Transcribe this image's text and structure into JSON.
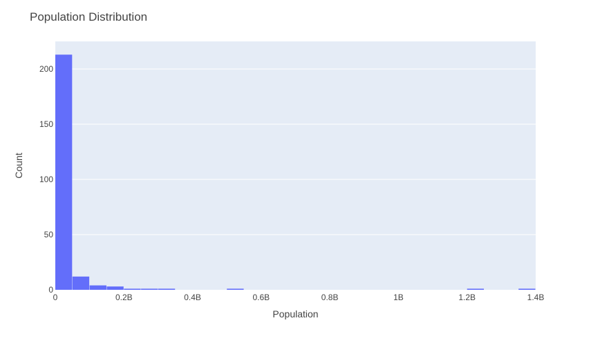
{
  "chart_data": {
    "type": "bar",
    "title": "Population Distribution",
    "xlabel": "Population",
    "ylabel": "Count",
    "xlim": [
      0,
      1400000000
    ],
    "ylim": [
      0,
      225
    ],
    "bin_width": 50000000,
    "x_ticks": [
      {
        "value": 0,
        "label": "0"
      },
      {
        "value": 200000000,
        "label": "0.2B"
      },
      {
        "value": 400000000,
        "label": "0.4B"
      },
      {
        "value": 600000000,
        "label": "0.6B"
      },
      {
        "value": 800000000,
        "label": "0.8B"
      },
      {
        "value": 1000000000,
        "label": "1B"
      },
      {
        "value": 1200000000,
        "label": "1.2B"
      },
      {
        "value": 1400000000,
        "label": "1.4B"
      }
    ],
    "y_ticks": [
      {
        "value": 0,
        "label": "0"
      },
      {
        "value": 50,
        "label": "50"
      },
      {
        "value": 100,
        "label": "100"
      },
      {
        "value": 150,
        "label": "150"
      },
      {
        "value": 200,
        "label": "200"
      }
    ],
    "bins": [
      {
        "x0": 0,
        "x1": 50000000,
        "count": 213
      },
      {
        "x0": 50000000,
        "x1": 100000000,
        "count": 12
      },
      {
        "x0": 100000000,
        "x1": 150000000,
        "count": 4
      },
      {
        "x0": 150000000,
        "x1": 200000000,
        "count": 3
      },
      {
        "x0": 200000000,
        "x1": 250000000,
        "count": 1
      },
      {
        "x0": 250000000,
        "x1": 300000000,
        "count": 1
      },
      {
        "x0": 300000000,
        "x1": 350000000,
        "count": 1
      },
      {
        "x0": 500000000,
        "x1": 550000000,
        "count": 1
      },
      {
        "x0": 1200000000,
        "x1": 1250000000,
        "count": 1
      },
      {
        "x0": 1350000000,
        "x1": 1400000000,
        "count": 1
      }
    ],
    "bar_color": "#636efa",
    "plot_background": "#e5ecf6",
    "grid": true,
    "grid_color": "#ffffff",
    "legend": false
  }
}
